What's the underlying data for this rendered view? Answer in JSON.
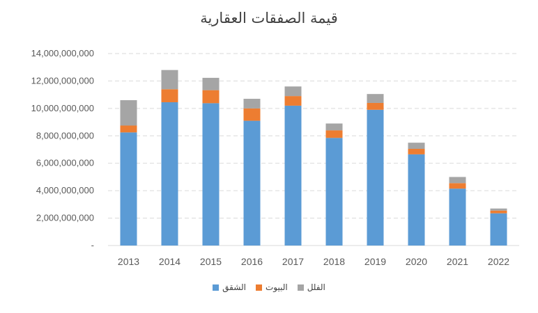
{
  "chart_data": {
    "type": "bar",
    "stacked": true,
    "title": "قيمة الصفقات العقارية",
    "categories": [
      "2013",
      "2014",
      "2015",
      "2016",
      "2017",
      "2018",
      "2019",
      "2020",
      "2021",
      "2022"
    ],
    "series": [
      {
        "name": "الشقق",
        "color": "#5b9bd5",
        "values": [
          8250000000,
          10450000000,
          10380000000,
          9100000000,
          10200000000,
          7850000000,
          9900000000,
          6650000000,
          4150000000,
          2350000000
        ]
      },
      {
        "name": "البيوت",
        "color": "#ed7d31",
        "values": [
          500000000,
          950000000,
          950000000,
          900000000,
          700000000,
          550000000,
          500000000,
          400000000,
          400000000,
          200000000
        ]
      },
      {
        "name": "الفلل",
        "color": "#a5a5a5",
        "values": [
          1850000000,
          1400000000,
          900000000,
          700000000,
          700000000,
          500000000,
          650000000,
          450000000,
          450000000,
          150000000
        ]
      }
    ],
    "ylim": [
      0,
      14000000000
    ],
    "yticks": [
      "-",
      "2,000,000,000",
      "4,000,000,000",
      "6,000,000,000",
      "8,000,000,000",
      "10,000,000,000",
      "12,000,000,000",
      "14,000,000,000"
    ],
    "ytick_values": [
      0,
      2000000000,
      4000000000,
      6000000000,
      8000000000,
      10000000000,
      12000000000,
      14000000000
    ],
    "grid": true,
    "legend_position": "bottom",
    "legend_order": [
      "الشقق",
      "البيوت",
      "الفلل"
    ]
  }
}
